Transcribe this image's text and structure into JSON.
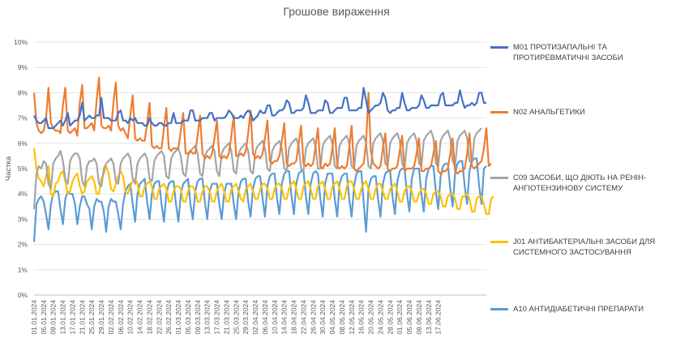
{
  "chart_data": {
    "type": "line",
    "title": "Грошове вираження",
    "ylabel": "Частка",
    "xlabel": "",
    "ylim": [
      0,
      10
    ],
    "y_ticks": [
      "0%",
      "1%",
      "2%",
      "3%",
      "4%",
      "5%",
      "6%",
      "7%",
      "8%",
      "9%",
      "10%"
    ],
    "x_tick_labels": [
      "01.01.2024",
      "05.01.2024",
      "09.01.2024",
      "13.01.2024",
      "17.01.2024",
      "21.01.2024",
      "25.01.2024",
      "29.01.2024",
      "02.02.2024",
      "06.02.2024",
      "10.02.2024",
      "14.02.2024",
      "18.02.2024",
      "22.02.2024",
      "26.02.2024",
      "01.03.2024",
      "05.03.2024",
      "09.03.2024",
      "13.03.2024",
      "17.03.2024",
      "21.03.2024",
      "25.03.2024",
      "29.03.2024",
      "02.04.2024",
      "06.04.2024",
      "10.04.2024",
      "14.04.2024",
      "18.04.2024",
      "22.04.2024",
      "26.04.2024",
      "30.04.2024",
      "04.05.2024",
      "08.05.2024",
      "12.05.2024",
      "16.05.2024",
      "20.05.2024",
      "24.05.2024",
      "28.05.2024",
      "01.06.2024",
      "05.06.2024",
      "09.06.2024",
      "13.06.2024",
      "17.06.2024"
    ],
    "x_start": "01.01.2024",
    "x_end": "19.06.2024",
    "grid": true,
    "legend_position": "right",
    "series": [
      {
        "name": "M01 ПРОТИЗАПАЛЬНІ ТА ПРОТИРЕВМАТИЧНІ ЗАСОБИ",
        "color": "#4472C4",
        "values": [
          7.1,
          6.9,
          6.8,
          6.8,
          6.9,
          7.0,
          6.6,
          6.6,
          6.6,
          6.7,
          6.8,
          6.9,
          6.7,
          6.9,
          7.2,
          6.7,
          6.8,
          6.9,
          6.9,
          7.1,
          7.6,
          6.9,
          7.0,
          7.1,
          7.0,
          7.0,
          7.1,
          7.1,
          7.8,
          7.0,
          7.0,
          7.0,
          6.9,
          6.9,
          6.9,
          7.2,
          7.3,
          6.9,
          6.9,
          6.8,
          7.0,
          6.9,
          7.0,
          6.8,
          6.8,
          6.8,
          6.7,
          6.7,
          7.0,
          6.8,
          6.7,
          6.7,
          6.8,
          6.8,
          6.7,
          6.7,
          6.8,
          6.8,
          7.2,
          6.8,
          6.8,
          6.8,
          6.9,
          6.9,
          6.9,
          7.3,
          7.3,
          6.9,
          6.9,
          6.9,
          7.0,
          7.0,
          7.0,
          7.2,
          7.2,
          6.9,
          7.0,
          7.0,
          7.0,
          7.0,
          7.1,
          7.3,
          7.2,
          7.0,
          7.0,
          7.0,
          7.1,
          7.0,
          7.2,
          7.3,
          7.2,
          6.9,
          7.0,
          7.1,
          7.3,
          7.2,
          7.2,
          7.5,
          7.5,
          7.1,
          7.1,
          7.2,
          7.3,
          7.3,
          7.4,
          7.7,
          7.6,
          7.2,
          7.2,
          7.3,
          7.3,
          7.3,
          7.4,
          7.9,
          7.6,
          7.2,
          7.2,
          7.2,
          7.3,
          7.3,
          7.3,
          7.7,
          7.6,
          7.2,
          7.2,
          7.3,
          7.4,
          7.4,
          7.4,
          7.8,
          7.8,
          7.3,
          7.3,
          7.3,
          7.3,
          7.4,
          7.4,
          8.2,
          7.7,
          7.2,
          7.3,
          7.4,
          7.5,
          7.5,
          7.6,
          8.0,
          7.8,
          7.3,
          7.2,
          7.3,
          7.3,
          7.4,
          7.4,
          8.0,
          7.6,
          7.3,
          7.3,
          7.4,
          7.4,
          7.4,
          7.5,
          7.9,
          7.7,
          7.4,
          7.4,
          7.5,
          7.5,
          7.5,
          7.5,
          7.9,
          8.0,
          7.5,
          7.5,
          7.5,
          7.5,
          7.6,
          7.6,
          8.1,
          7.7,
          7.4,
          7.5,
          7.5,
          7.6,
          7.5,
          7.6,
          8.0,
          8.0,
          7.6,
          7.6
        ]
      },
      {
        "name": "N02 АНАЛЬГЕТИКИ",
        "color": "#ED7D31",
        "values": [
          8.0,
          6.8,
          6.5,
          6.4,
          6.5,
          7.0,
          8.2,
          6.8,
          6.6,
          6.5,
          6.5,
          6.4,
          7.5,
          8.2,
          6.5,
          6.4,
          6.5,
          6.6,
          6.3,
          7.6,
          8.3,
          6.6,
          6.6,
          6.7,
          6.8,
          6.5,
          7.7,
          8.6,
          6.7,
          6.6,
          6.6,
          6.7,
          6.5,
          7.6,
          8.4,
          6.7,
          6.5,
          6.6,
          6.4,
          6.2,
          7.1,
          7.9,
          6.2,
          6.1,
          6.2,
          6.1,
          6.1,
          6.8,
          7.6,
          5.9,
          5.8,
          5.9,
          5.8,
          5.8,
          6.6,
          7.4,
          5.8,
          5.7,
          5.8,
          5.8,
          5.8,
          6.5,
          7.2,
          5.6,
          5.6,
          5.7,
          5.6,
          5.6,
          6.3,
          7.1,
          5.6,
          5.4,
          5.5,
          5.4,
          5.6,
          6.2,
          6.9,
          5.5,
          5.4,
          5.5,
          5.4,
          5.6,
          6.3,
          7.1,
          5.5,
          5.5,
          5.6,
          5.5,
          5.7,
          6.4,
          7.3,
          5.6,
          5.4,
          5.5,
          5.4,
          5.6,
          6.2,
          6.9,
          5.3,
          5.2,
          5.3,
          5.3,
          5.5,
          6.1,
          6.8,
          5.2,
          5.1,
          5.2,
          5.2,
          5.3,
          6.0,
          6.7,
          5.2,
          5.1,
          5.2,
          5.1,
          5.2,
          5.9,
          6.6,
          5.1,
          5.0,
          5.2,
          5.1,
          5.2,
          5.8,
          6.6,
          5.1,
          5.0,
          5.1,
          5.0,
          5.1,
          5.8,
          6.7,
          5.0,
          4.9,
          5.0,
          5.1,
          5.2,
          6.0,
          8.0,
          5.7,
          5.2,
          5.1,
          5.0,
          5.1,
          5.8,
          6.4,
          5.0,
          4.9,
          5.0,
          5.0,
          5.1,
          5.7,
          6.3,
          4.9,
          5.0,
          5.0,
          5.0,
          5.1,
          5.6,
          6.2,
          4.9,
          4.9,
          5.0,
          5.0,
          5.1,
          5.6,
          6.1,
          4.9,
          4.8,
          4.9,
          4.9,
          5.0,
          5.6,
          6.2,
          4.9,
          4.8,
          4.9,
          4.9,
          5.0,
          5.6,
          6.4,
          5.1,
          5.0,
          5.1,
          5.2,
          5.3,
          5.8,
          6.6,
          5.1,
          5.2
        ]
      },
      {
        "name": "C09 ЗАСОБИ, ЩО ДІЮТЬ НА РЕНІН-АНГІОТЕНЗИНОВУ СИСТЕМУ",
        "color": "#A5A5A5",
        "values": [
          3.4,
          4.8,
          5.1,
          5.0,
          5.3,
          5.2,
          4.4,
          4.2,
          5.2,
          5.4,
          5.5,
          5.7,
          5.3,
          4.6,
          4.4,
          5.3,
          5.5,
          5.6,
          5.6,
          5.4,
          4.5,
          4.3,
          5.1,
          5.3,
          5.3,
          5.4,
          5.2,
          4.4,
          4.3,
          5.0,
          5.2,
          5.3,
          5.4,
          5.2,
          4.5,
          4.4,
          5.2,
          5.4,
          5.5,
          5.6,
          5.4,
          4.6,
          4.4,
          5.2,
          5.4,
          5.5,
          5.6,
          5.4,
          4.6,
          4.5,
          5.3,
          5.5,
          5.6,
          5.7,
          5.5,
          4.7,
          4.6,
          5.4,
          5.6,
          5.7,
          5.8,
          5.5,
          4.8,
          4.7,
          5.5,
          5.7,
          5.8,
          5.9,
          5.6,
          4.8,
          4.7,
          5.5,
          5.7,
          5.8,
          5.9,
          5.7,
          4.9,
          4.7,
          5.6,
          5.8,
          5.9,
          6.0,
          5.7,
          4.9,
          4.8,
          5.6,
          5.8,
          5.9,
          6.0,
          5.7,
          4.9,
          4.8,
          5.7,
          5.9,
          6.0,
          6.1,
          5.8,
          5.0,
          4.9,
          5.7,
          5.9,
          6.0,
          6.1,
          5.8,
          5.0,
          4.9,
          5.8,
          6.0,
          6.1,
          6.2,
          5.9,
          5.0,
          4.9,
          5.8,
          6.0,
          6.1,
          6.2,
          5.9,
          5.0,
          5.0,
          5.9,
          6.1,
          6.2,
          6.3,
          6.0,
          5.1,
          5.0,
          5.9,
          6.1,
          6.2,
          6.3,
          6.0,
          5.1,
          5.0,
          5.9,
          6.1,
          6.2,
          6.3,
          6.0,
          5.1,
          5.0,
          6.0,
          6.2,
          6.3,
          6.4,
          6.1,
          5.2,
          5.1,
          6.0,
          6.2,
          6.3,
          6.4,
          6.1,
          5.2,
          5.0,
          6.0,
          6.2,
          6.3,
          6.4,
          6.1,
          5.2,
          5.1,
          6.1,
          6.3,
          6.4,
          6.5,
          6.2,
          5.2,
          5.1,
          6.1,
          6.3,
          6.4,
          6.5,
          6.2,
          5.3,
          5.1,
          6.1,
          6.3,
          6.4,
          6.5,
          6.2,
          5.3,
          5.2,
          6.2,
          6.4,
          6.5,
          6.6
        ]
      },
      {
        "name": "J01 АНТИБАКТЕРІАЛЬНІ ЗАСОБИ ДЛЯ СИСТЕМНОГО ЗАСТОСУВАННЯ",
        "color": "#FFC000",
        "values": [
          5.8,
          5.0,
          4.6,
          4.5,
          4.3,
          4.7,
          5.1,
          4.0,
          3.9,
          4.4,
          4.5,
          4.8,
          4.9,
          4.5,
          4.0,
          4.1,
          4.5,
          4.7,
          4.8,
          4.3,
          4.0,
          4.1,
          4.5,
          4.6,
          4.7,
          4.5,
          4.0,
          4.0,
          4.6,
          4.8,
          5.1,
          4.8,
          4.2,
          4.1,
          4.4,
          4.7,
          4.9,
          4.7,
          4.1,
          4.0,
          4.3,
          4.5,
          4.6,
          4.4,
          3.9,
          3.9,
          4.3,
          4.4,
          4.5,
          4.3,
          3.8,
          3.8,
          4.2,
          4.3,
          4.4,
          4.2,
          3.7,
          3.7,
          4.1,
          4.3,
          4.3,
          4.2,
          3.7,
          3.7,
          4.1,
          4.3,
          4.3,
          4.1,
          3.7,
          3.7,
          4.1,
          4.3,
          4.3,
          4.1,
          3.7,
          3.7,
          4.1,
          4.3,
          4.4,
          4.1,
          3.7,
          3.7,
          4.2,
          4.3,
          4.4,
          4.1,
          3.8,
          3.7,
          4.2,
          4.3,
          4.4,
          4.1,
          3.8,
          3.8,
          4.2,
          4.4,
          4.4,
          4.2,
          3.8,
          3.8,
          4.2,
          4.4,
          4.4,
          4.2,
          3.8,
          3.8,
          4.2,
          4.4,
          4.5,
          4.2,
          3.8,
          3.8,
          4.3,
          4.4,
          4.5,
          4.2,
          3.8,
          3.8,
          4.3,
          4.4,
          4.5,
          4.2,
          3.8,
          3.8,
          4.3,
          4.4,
          4.5,
          4.2,
          3.8,
          3.8,
          4.3,
          4.5,
          4.5,
          4.2,
          3.8,
          3.8,
          4.2,
          4.4,
          4.5,
          4.2,
          3.8,
          3.8,
          4.2,
          4.4,
          4.4,
          4.1,
          3.8,
          3.8,
          4.2,
          4.3,
          4.4,
          4.1,
          3.7,
          3.7,
          4.1,
          4.3,
          4.3,
          4.1,
          3.7,
          3.7,
          4.0,
          4.2,
          4.2,
          4.0,
          3.6,
          3.6,
          4.0,
          4.1,
          4.1,
          3.9,
          3.5,
          3.5,
          3.9,
          4.0,
          4.0,
          3.8,
          3.4,
          3.4,
          3.9,
          3.9,
          4.0,
          3.8,
          3.3,
          3.3,
          3.8,
          3.9,
          3.9,
          3.6,
          3.2,
          3.2,
          3.8,
          3.9
        ]
      },
      {
        "name": "A10 АНТИДІАБЕТИЧНІ ПРЕПАРАТИ",
        "color": "#5B9BD5",
        "values": [
          2.1,
          3.6,
          3.8,
          3.9,
          3.7,
          3.2,
          2.6,
          3.6,
          4.0,
          4.1,
          4.1,
          3.4,
          2.8,
          3.8,
          4.1,
          4.0,
          4.0,
          3.6,
          2.8,
          3.5,
          3.9,
          3.9,
          3.6,
          3.4,
          2.6,
          3.5,
          3.8,
          3.7,
          3.7,
          3.3,
          2.5,
          3.5,
          3.8,
          3.7,
          3.7,
          3.2,
          2.6,
          3.6,
          4.1,
          4.3,
          4.4,
          3.6,
          2.9,
          4.0,
          4.4,
          4.5,
          4.6,
          3.7,
          3.0,
          4.0,
          4.4,
          4.5,
          4.5,
          3.6,
          2.9,
          4.0,
          4.4,
          4.5,
          4.5,
          3.6,
          2.9,
          4.0,
          4.4,
          4.5,
          4.6,
          3.6,
          3.0,
          4.1,
          4.5,
          4.6,
          4.6,
          3.7,
          3.0,
          4.1,
          4.4,
          4.4,
          4.4,
          3.6,
          3.0,
          4.0,
          4.4,
          4.4,
          4.4,
          3.6,
          3.0,
          4.1,
          4.5,
          4.6,
          4.6,
          3.7,
          3.1,
          4.2,
          4.6,
          4.7,
          4.7,
          3.8,
          3.1,
          4.3,
          4.7,
          4.8,
          4.8,
          3.8,
          3.2,
          4.4,
          4.8,
          4.9,
          4.9,
          3.9,
          3.2,
          4.4,
          4.8,
          4.9,
          4.9,
          3.9,
          3.2,
          4.4,
          4.8,
          4.9,
          4.8,
          3.8,
          3.1,
          4.4,
          4.8,
          4.8,
          4.8,
          3.8,
          3.1,
          4.4,
          4.7,
          4.8,
          4.8,
          3.8,
          3.1,
          4.3,
          4.8,
          4.9,
          4.9,
          3.7,
          2.5,
          4.2,
          4.6,
          4.7,
          4.7,
          3.8,
          3.1,
          4.4,
          4.8,
          4.9,
          4.9,
          3.9,
          3.2,
          4.5,
          4.9,
          5.0,
          5.0,
          4.0,
          3.3,
          4.6,
          5.0,
          5.0,
          5.0,
          4.0,
          3.3,
          4.6,
          5.0,
          5.1,
          5.1,
          4.1,
          3.4,
          4.7,
          5.1,
          5.2,
          5.2,
          4.2,
          3.5,
          4.8,
          5.2,
          5.3,
          5.3,
          4.3,
          3.6,
          4.9,
          5.3,
          5.4,
          5.4,
          4.3,
          3.6,
          5.0,
          5.1
        ]
      }
    ]
  }
}
